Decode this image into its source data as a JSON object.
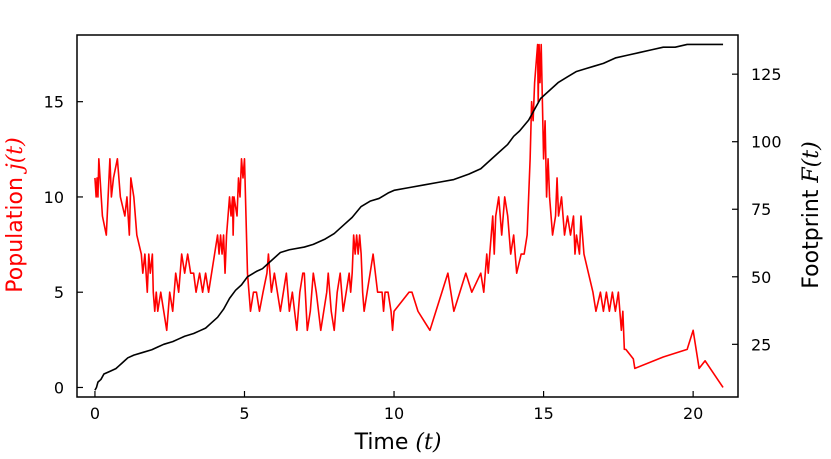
{
  "chart_data": {
    "type": "line",
    "xlabel": {
      "text": "Time ",
      "var": "(t)"
    },
    "ylabel_left": {
      "text": "Population ",
      "var": "j(t)"
    },
    "ylabel_right": {
      "text": "Footprint ",
      "var": "F(t)"
    },
    "xlim": [
      -0.6,
      21.5
    ],
    "ylim_left": [
      -0.5,
      18.5
    ],
    "ylim_right": [
      5.5,
      139.5
    ],
    "x_ticks": [
      0,
      5,
      10,
      15,
      20
    ],
    "y_left_ticks": [
      0,
      5,
      10,
      15
    ],
    "y_right_ticks": [
      25,
      50,
      75,
      100,
      125
    ],
    "grid": false,
    "colors": {
      "population": "#ff0000",
      "footprint": "#000000",
      "axes": "#000000"
    },
    "series": [
      {
        "axis": "left",
        "color": "#ff0000",
        "points": [
          [
            0,
            11
          ],
          [
            0.04,
            10
          ],
          [
            0.07,
            11
          ],
          [
            0.1,
            10
          ],
          [
            0.13,
            12
          ],
          [
            0.17,
            11
          ],
          [
            0.25,
            9
          ],
          [
            0.38,
            8
          ],
          [
            0.5,
            12
          ],
          [
            0.55,
            10
          ],
          [
            0.62,
            11
          ],
          [
            0.75,
            12
          ],
          [
            0.85,
            10
          ],
          [
            1.0,
            9
          ],
          [
            1.07,
            10
          ],
          [
            1.15,
            8
          ],
          [
            1.2,
            11
          ],
          [
            1.3,
            10
          ],
          [
            1.4,
            8
          ],
          [
            1.55,
            7
          ],
          [
            1.6,
            6
          ],
          [
            1.67,
            7
          ],
          [
            1.75,
            5
          ],
          [
            1.8,
            7
          ],
          [
            1.85,
            6
          ],
          [
            1.92,
            7
          ],
          [
            1.95,
            5
          ],
          [
            2.0,
            4
          ],
          [
            2.05,
            5
          ],
          [
            2.1,
            4
          ],
          [
            2.2,
            5
          ],
          [
            2.3,
            4
          ],
          [
            2.4,
            3
          ],
          [
            2.5,
            5
          ],
          [
            2.6,
            4
          ],
          [
            2.7,
            6
          ],
          [
            2.8,
            5
          ],
          [
            2.9,
            7
          ],
          [
            3.0,
            6
          ],
          [
            3.1,
            7
          ],
          [
            3.2,
            6
          ],
          [
            3.3,
            6
          ],
          [
            3.38,
            5
          ],
          [
            3.5,
            6
          ],
          [
            3.6,
            5
          ],
          [
            3.7,
            6
          ],
          [
            3.8,
            5
          ],
          [
            4.0,
            7
          ],
          [
            4.1,
            8
          ],
          [
            4.15,
            7
          ],
          [
            4.2,
            8
          ],
          [
            4.25,
            7
          ],
          [
            4.3,
            8
          ],
          [
            4.35,
            6
          ],
          [
            4.4,
            8
          ],
          [
            4.45,
            9
          ],
          [
            4.5,
            10
          ],
          [
            4.55,
            9
          ],
          [
            4.6,
            10
          ],
          [
            4.62,
            8
          ],
          [
            4.65,
            10
          ],
          [
            4.75,
            9
          ],
          [
            4.8,
            11
          ],
          [
            4.85,
            10
          ],
          [
            4.9,
            12
          ],
          [
            4.95,
            11
          ],
          [
            5.0,
            12
          ],
          [
            5.1,
            6
          ],
          [
            5.2,
            4
          ],
          [
            5.3,
            5
          ],
          [
            5.4,
            5
          ],
          [
            5.5,
            4
          ],
          [
            5.62,
            5
          ],
          [
            5.75,
            6
          ],
          [
            5.8,
            7
          ],
          [
            5.9,
            5
          ],
          [
            6.0,
            6
          ],
          [
            6.1,
            5
          ],
          [
            6.2,
            4
          ],
          [
            6.3,
            5
          ],
          [
            6.4,
            6
          ],
          [
            6.5,
            4
          ],
          [
            6.6,
            5
          ],
          [
            6.75,
            3
          ],
          [
            6.85,
            5
          ],
          [
            6.95,
            6
          ],
          [
            7.0,
            6
          ],
          [
            7.1,
            3
          ],
          [
            7.2,
            4
          ],
          [
            7.3,
            6
          ],
          [
            7.4,
            5
          ],
          [
            7.55,
            3
          ],
          [
            7.65,
            4
          ],
          [
            7.75,
            5
          ],
          [
            7.8,
            6
          ],
          [
            7.9,
            4
          ],
          [
            8.0,
            3
          ],
          [
            8.1,
            5
          ],
          [
            8.2,
            6
          ],
          [
            8.3,
            4
          ],
          [
            8.4,
            5
          ],
          [
            8.5,
            6
          ],
          [
            8.55,
            5
          ],
          [
            8.6,
            6
          ],
          [
            8.65,
            8
          ],
          [
            8.7,
            7
          ],
          [
            8.75,
            8
          ],
          [
            8.8,
            7
          ],
          [
            8.85,
            8
          ],
          [
            8.9,
            7
          ],
          [
            8.95,
            5
          ],
          [
            9.0,
            4
          ],
          [
            9.1,
            5
          ],
          [
            9.3,
            7
          ],
          [
            9.45,
            5
          ],
          [
            9.6,
            5
          ],
          [
            9.65,
            4
          ],
          [
            9.7,
            5
          ],
          [
            9.8,
            5
          ],
          [
            9.9,
            4
          ],
          [
            9.95,
            3
          ],
          [
            10.0,
            4
          ],
          [
            10.5,
            5
          ],
          [
            10.6,
            5
          ],
          [
            10.8,
            4
          ],
          [
            11.0,
            3.5
          ],
          [
            11.2,
            3
          ],
          [
            11.4,
            4
          ],
          [
            11.6,
            5
          ],
          [
            11.8,
            6
          ],
          [
            12.0,
            4
          ],
          [
            12.2,
            5
          ],
          [
            12.4,
            6
          ],
          [
            12.6,
            5
          ],
          [
            12.9,
            6
          ],
          [
            13.0,
            5
          ],
          [
            13.1,
            7
          ],
          [
            13.15,
            6
          ],
          [
            13.2,
            7
          ],
          [
            13.3,
            9
          ],
          [
            13.35,
            7
          ],
          [
            13.4,
            9
          ],
          [
            13.5,
            10
          ],
          [
            13.6,
            8
          ],
          [
            13.7,
            10
          ],
          [
            13.8,
            9
          ],
          [
            13.9,
            7
          ],
          [
            14.0,
            8
          ],
          [
            14.1,
            6
          ],
          [
            14.25,
            7
          ],
          [
            14.35,
            7
          ],
          [
            14.45,
            8
          ],
          [
            14.5,
            10
          ],
          [
            14.55,
            12
          ],
          [
            14.6,
            15
          ],
          [
            14.65,
            14
          ],
          [
            14.7,
            16
          ],
          [
            14.75,
            17
          ],
          [
            14.8,
            18
          ],
          [
            14.82,
            15
          ],
          [
            14.85,
            18
          ],
          [
            14.88,
            16
          ],
          [
            14.92,
            18
          ],
          [
            15.0,
            12
          ],
          [
            15.05,
            14
          ],
          [
            15.1,
            10
          ],
          [
            15.15,
            12
          ],
          [
            15.2,
            10
          ],
          [
            15.3,
            8
          ],
          [
            15.4,
            9
          ],
          [
            15.45,
            11
          ],
          [
            15.5,
            9
          ],
          [
            15.6,
            10
          ],
          [
            15.7,
            8
          ],
          [
            15.8,
            9
          ],
          [
            15.9,
            8
          ],
          [
            16.0,
            9
          ],
          [
            16.05,
            7
          ],
          [
            16.1,
            8
          ],
          [
            16.2,
            7
          ],
          [
            16.25,
            9
          ],
          [
            16.35,
            7
          ],
          [
            16.5,
            6
          ],
          [
            16.65,
            5
          ],
          [
            16.75,
            4
          ],
          [
            16.9,
            5
          ],
          [
            17.0,
            4
          ],
          [
            17.1,
            5
          ],
          [
            17.2,
            4
          ],
          [
            17.3,
            5
          ],
          [
            17.4,
            4
          ],
          [
            17.5,
            5
          ],
          [
            17.55,
            4
          ],
          [
            17.6,
            3
          ],
          [
            17.65,
            4
          ],
          [
            17.7,
            2
          ],
          [
            17.75,
            2
          ],
          [
            18.0,
            1.5
          ],
          [
            18.05,
            1
          ],
          [
            19.0,
            1.6
          ],
          [
            19.8,
            2
          ],
          [
            20.0,
            3
          ],
          [
            20.2,
            1
          ],
          [
            20.4,
            1.4
          ],
          [
            21.0,
            0
          ]
        ]
      },
      {
        "axis": "right",
        "color": "#000000",
        "points": [
          [
            0,
            8
          ],
          [
            0.05,
            9
          ],
          [
            0.1,
            11
          ],
          [
            0.2,
            12
          ],
          [
            0.3,
            14
          ],
          [
            0.5,
            15
          ],
          [
            0.7,
            16
          ],
          [
            0.8,
            17
          ],
          [
            0.9,
            18
          ],
          [
            1.0,
            19
          ],
          [
            1.1,
            20
          ],
          [
            1.3,
            21
          ],
          [
            1.6,
            22
          ],
          [
            1.9,
            23
          ],
          [
            2.1,
            24
          ],
          [
            2.3,
            25
          ],
          [
            2.6,
            26
          ],
          [
            2.8,
            27
          ],
          [
            3.0,
            28
          ],
          [
            3.3,
            29
          ],
          [
            3.5,
            30
          ],
          [
            3.7,
            31
          ],
          [
            3.9,
            33
          ],
          [
            4.1,
            35
          ],
          [
            4.3,
            38
          ],
          [
            4.5,
            42
          ],
          [
            4.7,
            45
          ],
          [
            4.9,
            47
          ],
          [
            5.1,
            50
          ],
          [
            5.4,
            52
          ],
          [
            5.6,
            53
          ],
          [
            5.8,
            55
          ],
          [
            6.0,
            57
          ],
          [
            6.2,
            59
          ],
          [
            6.5,
            60
          ],
          [
            7.0,
            61
          ],
          [
            7.3,
            62
          ],
          [
            7.7,
            64
          ],
          [
            8.0,
            66
          ],
          [
            8.3,
            69
          ],
          [
            8.6,
            72
          ],
          [
            8.9,
            76
          ],
          [
            9.2,
            78
          ],
          [
            9.5,
            79
          ],
          [
            9.8,
            81
          ],
          [
            10.0,
            82
          ],
          [
            10.5,
            83
          ],
          [
            11.0,
            84
          ],
          [
            11.5,
            85
          ],
          [
            12.0,
            86
          ],
          [
            12.5,
            88
          ],
          [
            12.9,
            90
          ],
          [
            13.2,
            93
          ],
          [
            13.5,
            96
          ],
          [
            13.8,
            99
          ],
          [
            14.0,
            102
          ],
          [
            14.2,
            104
          ],
          [
            14.5,
            108
          ],
          [
            14.7,
            112
          ],
          [
            14.9,
            116
          ],
          [
            15.2,
            119
          ],
          [
            15.5,
            122
          ],
          [
            15.8,
            124
          ],
          [
            16.1,
            126
          ],
          [
            16.4,
            127
          ],
          [
            16.7,
            128
          ],
          [
            17.0,
            129
          ],
          [
            17.4,
            131
          ],
          [
            17.8,
            132
          ],
          [
            18.2,
            133
          ],
          [
            18.6,
            134
          ],
          [
            19.0,
            135
          ],
          [
            19.4,
            135
          ],
          [
            19.8,
            136
          ],
          [
            20.2,
            136
          ],
          [
            20.6,
            136
          ],
          [
            21.0,
            136
          ]
        ]
      }
    ]
  }
}
